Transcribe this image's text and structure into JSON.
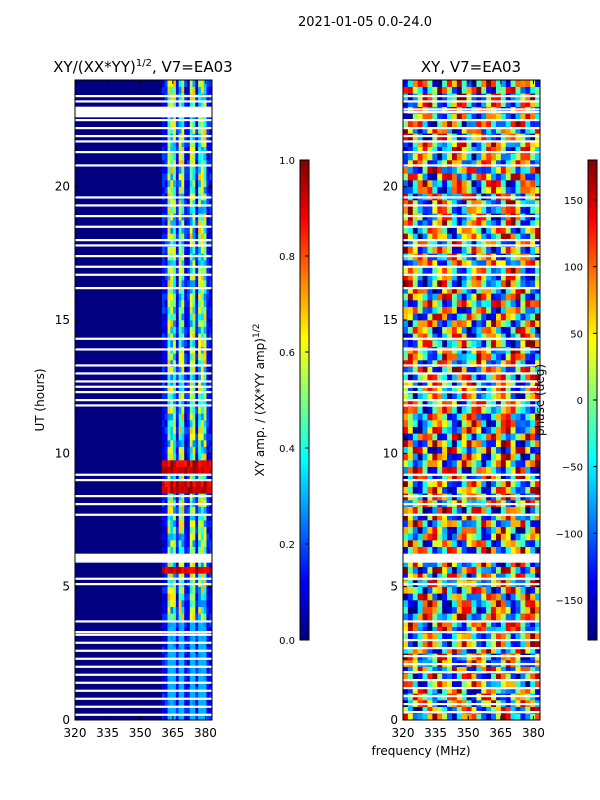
{
  "suptitle": "2021-01-05 0.0-24.0",
  "xlabel": "frequency (MHz)",
  "colors": {
    "background": "#000080",
    "jet": [
      "#000080",
      "#0000ff",
      "#0080ff",
      "#00ffff",
      "#80ff80",
      "#ffff00",
      "#ff8000",
      "#ff0000",
      "#800000"
    ]
  },
  "chart_data": [
    {
      "type": "heatmap",
      "title_prefix": "XY/(XX*YY)",
      "title_exp": "1/2",
      "title_suffix": ", V7=EA03",
      "ylabel": "UT (hours)",
      "xlim": [
        320,
        383
      ],
      "ylim": [
        0,
        24
      ],
      "xticks": [
        320,
        335,
        350,
        365,
        380
      ],
      "yticks": [
        0,
        5,
        10,
        15,
        20
      ],
      "quiet_below_mhz": 360,
      "active_columns_mhz": [
        364,
        369,
        374,
        379
      ],
      "strong_rfi_hours": [
        5.6,
        8.8,
        9.5
      ],
      "white_gap_hours": [
        0.2,
        0.5,
        0.8,
        1.1,
        1.4,
        1.7,
        2.0,
        2.3,
        2.6,
        2.9,
        3.2,
        3.3,
        3.7,
        5.1,
        5.3,
        6.0,
        6.1,
        6.2,
        7.7,
        8.1,
        8.4,
        9.0,
        9.2,
        11.8,
        12.0,
        12.3,
        12.5,
        12.7,
        13.0,
        13.3,
        13.9,
        14.3,
        16.2,
        16.7,
        17.0,
        17.4,
        17.8,
        18.0,
        18.5,
        18.9,
        19.3,
        19.6,
        20.8,
        21.3,
        21.7,
        21.9,
        22.2,
        22.5,
        22.8,
        22.9,
        23.2,
        23.4
      ]
    },
    {
      "type": "heatmap",
      "title": "XY, V7=EA03",
      "xlim": [
        320,
        383
      ],
      "ylim": [
        0,
        24
      ],
      "xticks": [
        320,
        335,
        350,
        365,
        380
      ],
      "yticks": [
        0,
        5,
        10,
        15,
        20
      ],
      "white_gap_hours": [
        0.3,
        0.6,
        0.9,
        1.2,
        1.5,
        1.8,
        2.1,
        2.4,
        2.7,
        3.0,
        3.3,
        3.7,
        5.1,
        5.3,
        6.0,
        6.1,
        6.2,
        7.7,
        8.1,
        8.4,
        9.0,
        9.2,
        11.8,
        12.0,
        12.3,
        12.5,
        12.7,
        13.0,
        13.3,
        13.9,
        14.3,
        16.2,
        16.7,
        17.0,
        17.4,
        17.8,
        18.0,
        18.5,
        18.9,
        19.3,
        19.6,
        20.8,
        21.3,
        21.7,
        21.9,
        22.2,
        22.5,
        22.8,
        22.9,
        23.2,
        23.4
      ]
    }
  ],
  "colorbars": [
    {
      "label_text": "XY amp. / (XX*YY amp)",
      "label_exp": "1/2",
      "min": 0.0,
      "max": 1.0,
      "ticks": [
        "0.0",
        "0.2",
        "0.4",
        "0.6",
        "0.8",
        "1.0"
      ],
      "tick_values": [
        0.0,
        0.2,
        0.4,
        0.6,
        0.8,
        1.0
      ]
    },
    {
      "label_text": "phase (deg)",
      "min": -180,
      "max": 180,
      "ticks": [
        "−150",
        "−100",
        "−50",
        "0",
        "50",
        "100",
        "150"
      ],
      "tick_values": [
        -150,
        -100,
        -50,
        0,
        50,
        100,
        150
      ]
    }
  ]
}
